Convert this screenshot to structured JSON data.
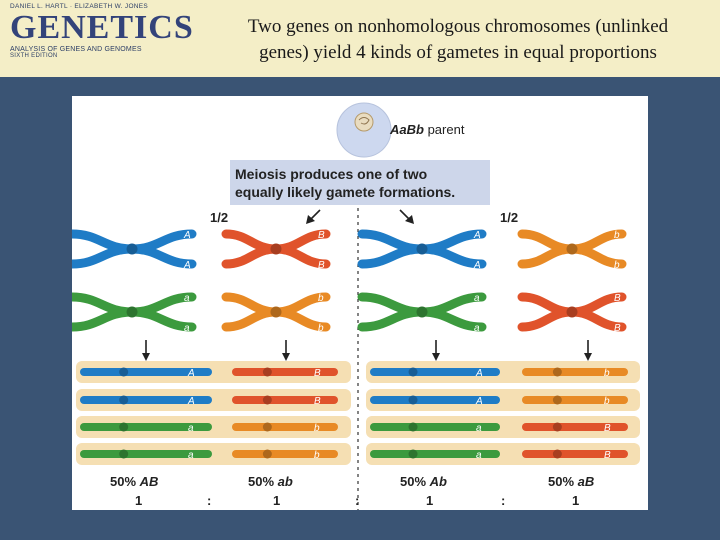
{
  "book": {
    "authors": "DANIEL L. HARTL · ELIZABETH W. JONES",
    "title": "GENETICS",
    "subtitle": "ANALYSIS OF GENES AND GENOMES",
    "edition": "SIXTH EDITION"
  },
  "slide": {
    "title_line1": "Two genes on nonhomologous chromosomes (unlinked",
    "title_line2": "genes) yield 4 kinds of gametes in equal proportions"
  },
  "figure": {
    "parent_label_italic": "AaBb",
    "parent_label_rest": " parent",
    "meiosis_line1": "Meiosis produces one of two",
    "meiosis_line2": "equally likely gamete formations.",
    "probability_left": "1/2",
    "probability_right": "1/2",
    "alleles": {
      "A": "A",
      "a": "a",
      "B": "B",
      "b": "b"
    },
    "gametes": [
      {
        "percent": "50% ",
        "genotype": "AB",
        "ratio": "1"
      },
      {
        "percent": "50% ",
        "genotype": "ab",
        "ratio": "1"
      },
      {
        "percent": "50% ",
        "genotype": "Ab",
        "ratio": "1"
      },
      {
        "percent": "50% ",
        "genotype": "aB",
        "ratio": "1"
      }
    ],
    "ratio_separator": ":"
  },
  "colors": {
    "background": "#3a5474",
    "header": "#f4eec7",
    "blue_chromosome": "#1f7cc6",
    "red_chromosome": "#e0532b",
    "green_chromosome": "#3c9a3e",
    "orange_chromosome": "#e88a25",
    "gamete_box": "#f5dfb3",
    "meiosis_box": "#cdd6ea"
  }
}
